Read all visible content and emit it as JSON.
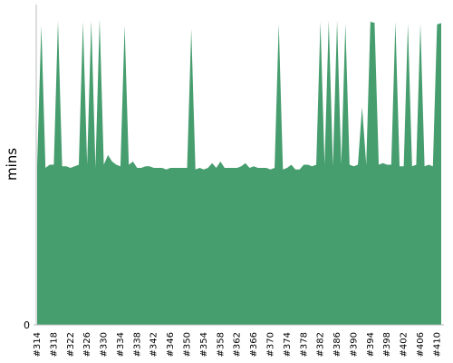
{
  "chart_data": {
    "type": "area",
    "ylabel": "mins",
    "categories": [
      "#314",
      null,
      null,
      null,
      "#318",
      null,
      null,
      null,
      "#322",
      null,
      null,
      null,
      "#326",
      null,
      null,
      null,
      "#330",
      null,
      null,
      null,
      "#334",
      null,
      null,
      null,
      "#338",
      null,
      null,
      null,
      "#342",
      null,
      null,
      null,
      "#346",
      null,
      null,
      null,
      "#350",
      null,
      null,
      null,
      "#354",
      null,
      null,
      null,
      "#358",
      null,
      null,
      null,
      "#362",
      null,
      null,
      null,
      "#366",
      null,
      null,
      null,
      "#370",
      null,
      null,
      null,
      "#374",
      null,
      null,
      null,
      "#378",
      null,
      null,
      null,
      "#382",
      null,
      null,
      null,
      "#386",
      null,
      null,
      null,
      "#390",
      null,
      null,
      null,
      "#394",
      null,
      null,
      null,
      "#398",
      null,
      null,
      null,
      "#402",
      null,
      null,
      null,
      "#406",
      null,
      null,
      null,
      "#410",
      null
    ],
    "values": [
      50,
      93.5,
      49,
      50,
      50,
      95,
      49.5,
      49.5,
      49,
      49.5,
      50,
      94.6,
      50,
      95,
      49,
      95.5,
      50,
      53,
      51,
      50,
      49.5,
      93.5,
      50,
      51,
      49,
      49,
      49.5,
      49.5,
      49,
      49,
      49,
      48.5,
      49,
      49,
      49,
      49,
      49,
      92.4,
      48.5,
      49,
      48.5,
      49,
      50.5,
      49,
      51,
      49,
      49,
      49,
      49,
      49.5,
      50.5,
      49,
      49.5,
      49,
      49,
      49,
      48.5,
      49,
      94,
      48.5,
      49,
      50,
      48.5,
      48.5,
      50,
      50,
      49.5,
      50,
      94.6,
      50,
      95,
      49.5,
      95,
      50,
      94,
      50,
      49.5,
      50,
      68,
      50,
      94.6,
      94.3,
      50,
      50.5,
      50,
      50,
      94.6,
      49.5,
      49.5,
      94,
      49.5,
      50,
      94,
      49.5,
      50,
      49.5,
      93.8,
      94.2
    ],
    "color": "#469d6e",
    "ylim": [
      0,
      100
    ],
    "yticks": [
      0
    ]
  }
}
